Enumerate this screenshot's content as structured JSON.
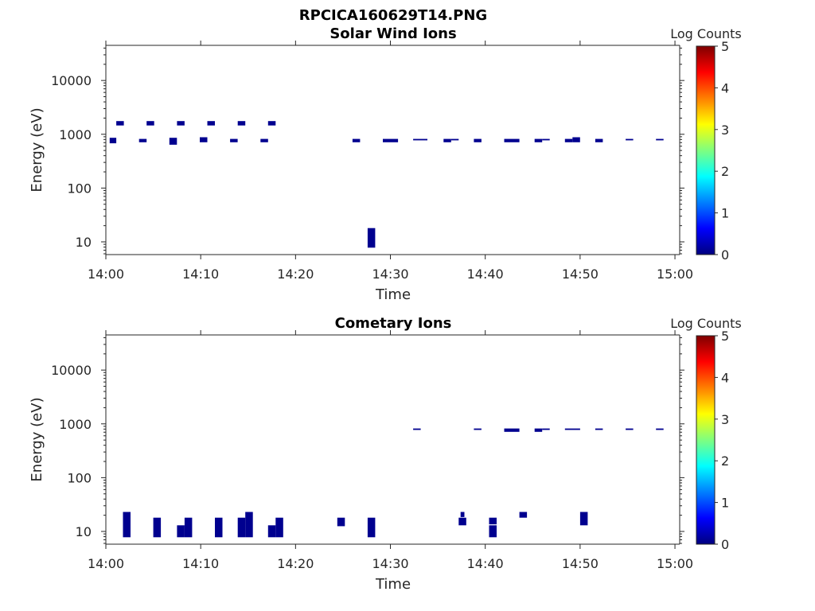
{
  "figure_title": "RPCICA160629T14.PNG",
  "colors": {
    "low": "#00008f",
    "axis": "#262626",
    "colormap": [
      "#00007f",
      "#0000ff",
      "#007fff",
      "#00ffff",
      "#7fff7f",
      "#ffff00",
      "#ff7f00",
      "#ff0000",
      "#7f0000"
    ]
  },
  "chart_data": [
    {
      "type": "heatmap",
      "title": "Solar Wind Ions",
      "xlabel": "Time",
      "ylabel": "Energy (eV)",
      "xticks": [
        "14:00",
        "14:10",
        "14:20",
        "14:30",
        "14:40",
        "14:50",
        "15:00"
      ],
      "xlim_minutes": [
        0,
        60.5
      ],
      "yscale": "log",
      "ylim": [
        5.8,
        45000
      ],
      "yticks": [
        10,
        100,
        1000,
        10000
      ],
      "yticklabels": [
        "10",
        "100",
        "1000",
        "10000"
      ],
      "colorbar": {
        "label": "Log Counts",
        "range": [
          0,
          5
        ],
        "ticks": [
          "0",
          "1",
          "2",
          "3",
          "4",
          "5"
        ]
      },
      "cells": [
        {
          "t0": 0.4,
          "t1": 1.1,
          "e0": 680,
          "e1": 860,
          "log_counts": 0.1
        },
        {
          "t0": 1.1,
          "t1": 1.9,
          "e0": 1460,
          "e1": 1760,
          "log_counts": 0.1
        },
        {
          "t0": 3.5,
          "t1": 4.3,
          "e0": 710,
          "e1": 820,
          "log_counts": 0.1
        },
        {
          "t0": 4.3,
          "t1": 5.1,
          "e0": 1460,
          "e1": 1760,
          "log_counts": 0.1
        },
        {
          "t0": 6.7,
          "t1": 7.5,
          "e0": 640,
          "e1": 860,
          "log_counts": 0.1
        },
        {
          "t0": 7.5,
          "t1": 8.3,
          "e0": 1460,
          "e1": 1760,
          "log_counts": 0.1
        },
        {
          "t0": 9.9,
          "t1": 10.7,
          "e0": 710,
          "e1": 880,
          "log_counts": 0.1
        },
        {
          "t0": 10.7,
          "t1": 11.5,
          "e0": 1460,
          "e1": 1760,
          "log_counts": 0.1
        },
        {
          "t0": 13.1,
          "t1": 13.9,
          "e0": 710,
          "e1": 820,
          "log_counts": 0.1
        },
        {
          "t0": 13.9,
          "t1": 14.7,
          "e0": 1460,
          "e1": 1760,
          "log_counts": 0.1
        },
        {
          "t0": 16.3,
          "t1": 17.1,
          "e0": 710,
          "e1": 820,
          "log_counts": 0.1
        },
        {
          "t0": 17.1,
          "t1": 17.9,
          "e0": 1460,
          "e1": 1760,
          "log_counts": 0.1
        },
        {
          "t0": 26.0,
          "t1": 26.8,
          "e0": 710,
          "e1": 820,
          "log_counts": 0.1
        },
        {
          "t0": 27.6,
          "t1": 28.4,
          "e0": 7.8,
          "e1": 18,
          "log_counts": 0.1
        },
        {
          "t0": 29.2,
          "t1": 30.8,
          "e0": 710,
          "e1": 820,
          "log_counts": 0.1
        },
        {
          "t0": 32.4,
          "t1": 33.9,
          "e0": 770,
          "e1": 820,
          "log_counts": 0.1
        },
        {
          "t0": 35.6,
          "t1": 36.4,
          "e0": 710,
          "e1": 820,
          "log_counts": 0.1
        },
        {
          "t0": 36.4,
          "t1": 37.2,
          "e0": 770,
          "e1": 820,
          "log_counts": 0.1
        },
        {
          "t0": 38.8,
          "t1": 39.6,
          "e0": 710,
          "e1": 820,
          "log_counts": 0.1
        },
        {
          "t0": 42.0,
          "t1": 43.6,
          "e0": 710,
          "e1": 820,
          "log_counts": 0.1
        },
        {
          "t0": 45.2,
          "t1": 46.0,
          "e0": 710,
          "e1": 820,
          "log_counts": 0.1
        },
        {
          "t0": 46.0,
          "t1": 46.8,
          "e0": 770,
          "e1": 820,
          "log_counts": 0.1
        },
        {
          "t0": 48.4,
          "t1": 49.2,
          "e0": 710,
          "e1": 820,
          "log_counts": 0.1
        },
        {
          "t0": 49.2,
          "t1": 50.0,
          "e0": 710,
          "e1": 880,
          "log_counts": 0.1
        },
        {
          "t0": 51.6,
          "t1": 52.4,
          "e0": 710,
          "e1": 820,
          "log_counts": 0.1
        },
        {
          "t0": 54.8,
          "t1": 55.6,
          "e0": 770,
          "e1": 820,
          "log_counts": 0.1
        },
        {
          "t0": 58.0,
          "t1": 58.8,
          "e0": 770,
          "e1": 820,
          "log_counts": 0.1
        }
      ]
    },
    {
      "type": "heatmap",
      "title": "Cometary Ions",
      "xlabel": "Time",
      "ylabel": "Energy (eV)",
      "xticks": [
        "14:00",
        "14:10",
        "14:20",
        "14:30",
        "14:40",
        "14:50",
        "15:00"
      ],
      "xlim_minutes": [
        0,
        60.5
      ],
      "yscale": "log",
      "ylim": [
        5.8,
        45000
      ],
      "yticks": [
        10,
        100,
        1000,
        10000
      ],
      "yticklabels": [
        "10",
        "100",
        "1000",
        "10000"
      ],
      "colorbar": {
        "label": "Log Counts",
        "range": [
          0,
          5
        ],
        "ticks": [
          "0",
          "1",
          "2",
          "3",
          "4",
          "5"
        ]
      },
      "cells": [
        {
          "t0": 1.8,
          "t1": 2.6,
          "e0": 7.8,
          "e1": 23,
          "log_counts": 0.1
        },
        {
          "t0": 5.0,
          "t1": 5.8,
          "e0": 7.8,
          "e1": 18,
          "log_counts": 0.1
        },
        {
          "t0": 7.5,
          "t1": 8.3,
          "e0": 7.8,
          "e1": 13,
          "log_counts": 0.1
        },
        {
          "t0": 8.3,
          "t1": 9.1,
          "e0": 7.8,
          "e1": 18,
          "log_counts": 0.1
        },
        {
          "t0": 11.5,
          "t1": 12.3,
          "e0": 7.8,
          "e1": 18,
          "log_counts": 0.1
        },
        {
          "t0": 13.9,
          "t1": 14.7,
          "e0": 7.8,
          "e1": 18,
          "log_counts": 0.1
        },
        {
          "t0": 14.7,
          "t1": 15.5,
          "e0": 7.8,
          "e1": 23,
          "log_counts": 0.1
        },
        {
          "t0": 17.1,
          "t1": 17.9,
          "e0": 7.8,
          "e1": 13,
          "log_counts": 0.1
        },
        {
          "t0": 17.9,
          "t1": 18.7,
          "e0": 7.8,
          "e1": 18,
          "log_counts": 0.1
        },
        {
          "t0": 24.4,
          "t1": 25.2,
          "e0": 12.5,
          "e1": 18,
          "log_counts": 0.1
        },
        {
          "t0": 27.6,
          "t1": 28.4,
          "e0": 7.8,
          "e1": 18,
          "log_counts": 0.1
        },
        {
          "t0": 32.4,
          "t1": 33.2,
          "e0": 770,
          "e1": 820,
          "log_counts": 0.1
        },
        {
          "t0": 37.2,
          "t1": 38.0,
          "e0": 13,
          "e1": 18,
          "log_counts": 0.1
        },
        {
          "t0": 37.4,
          "t1": 37.8,
          "e0": 18.5,
          "e1": 23,
          "log_counts": 0.1
        },
        {
          "t0": 38.8,
          "t1": 39.6,
          "e0": 770,
          "e1": 820,
          "log_counts": 0.1
        },
        {
          "t0": 40.4,
          "t1": 41.2,
          "e0": 7.8,
          "e1": 13,
          "log_counts": 0.1
        },
        {
          "t0": 40.4,
          "t1": 41.2,
          "e0": 13.5,
          "e1": 18,
          "log_counts": 0.1
        },
        {
          "t0": 42.0,
          "t1": 43.6,
          "e0": 710,
          "e1": 820,
          "log_counts": 0.1
        },
        {
          "t0": 43.6,
          "t1": 44.4,
          "e0": 18,
          "e1": 23,
          "log_counts": 0.1
        },
        {
          "t0": 45.2,
          "t1": 46.0,
          "e0": 710,
          "e1": 820,
          "log_counts": 0.1
        },
        {
          "t0": 46.0,
          "t1": 46.8,
          "e0": 770,
          "e1": 820,
          "log_counts": 0.1
        },
        {
          "t0": 48.4,
          "t1": 50.0,
          "e0": 770,
          "e1": 820,
          "log_counts": 0.1
        },
        {
          "t0": 50.0,
          "t1": 50.8,
          "e0": 13,
          "e1": 23,
          "log_counts": 0.1
        },
        {
          "t0": 51.6,
          "t1": 52.4,
          "e0": 770,
          "e1": 820,
          "log_counts": 0.1
        },
        {
          "t0": 54.8,
          "t1": 55.6,
          "e0": 770,
          "e1": 820,
          "log_counts": 0.1
        },
        {
          "t0": 58.0,
          "t1": 58.8,
          "e0": 770,
          "e1": 820,
          "log_counts": 0.1
        }
      ]
    }
  ]
}
